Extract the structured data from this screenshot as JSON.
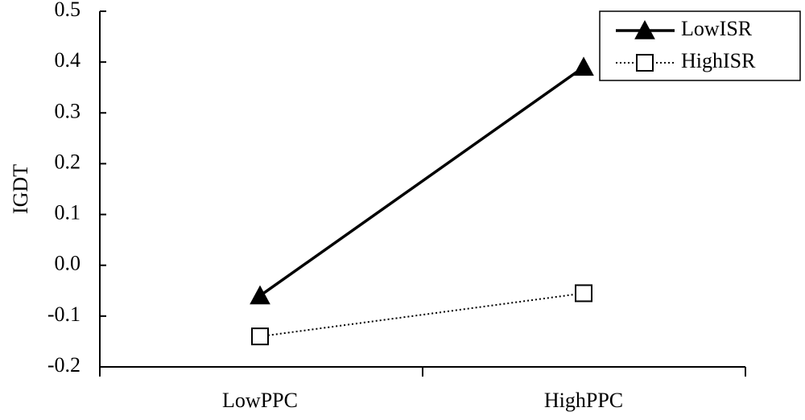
{
  "chart_data": {
    "type": "line",
    "categories": [
      "LowPPC",
      "HighPPC"
    ],
    "series": [
      {
        "name": "LowISR",
        "values": [
          -0.06,
          0.39
        ],
        "marker": "filled-triangle",
        "line": "solid",
        "color": "#000000"
      },
      {
        "name": "HighISR",
        "values": [
          -0.14,
          -0.055
        ],
        "marker": "open-square",
        "line": "dotted",
        "color": "#000000"
      }
    ],
    "ylabel": "IGDT",
    "xlabel": "",
    "ylim": [
      -0.2,
      0.5
    ],
    "yticks": [
      "0.5",
      "0.4",
      "0.3",
      "0.2",
      "0.1",
      "0.0",
      "-0.1",
      "-0.2"
    ],
    "ytick_values": [
      0.5,
      0.4,
      0.3,
      0.2,
      0.1,
      0.0,
      -0.1,
      -0.2
    ],
    "grid": false,
    "legend_position": "top-right"
  }
}
